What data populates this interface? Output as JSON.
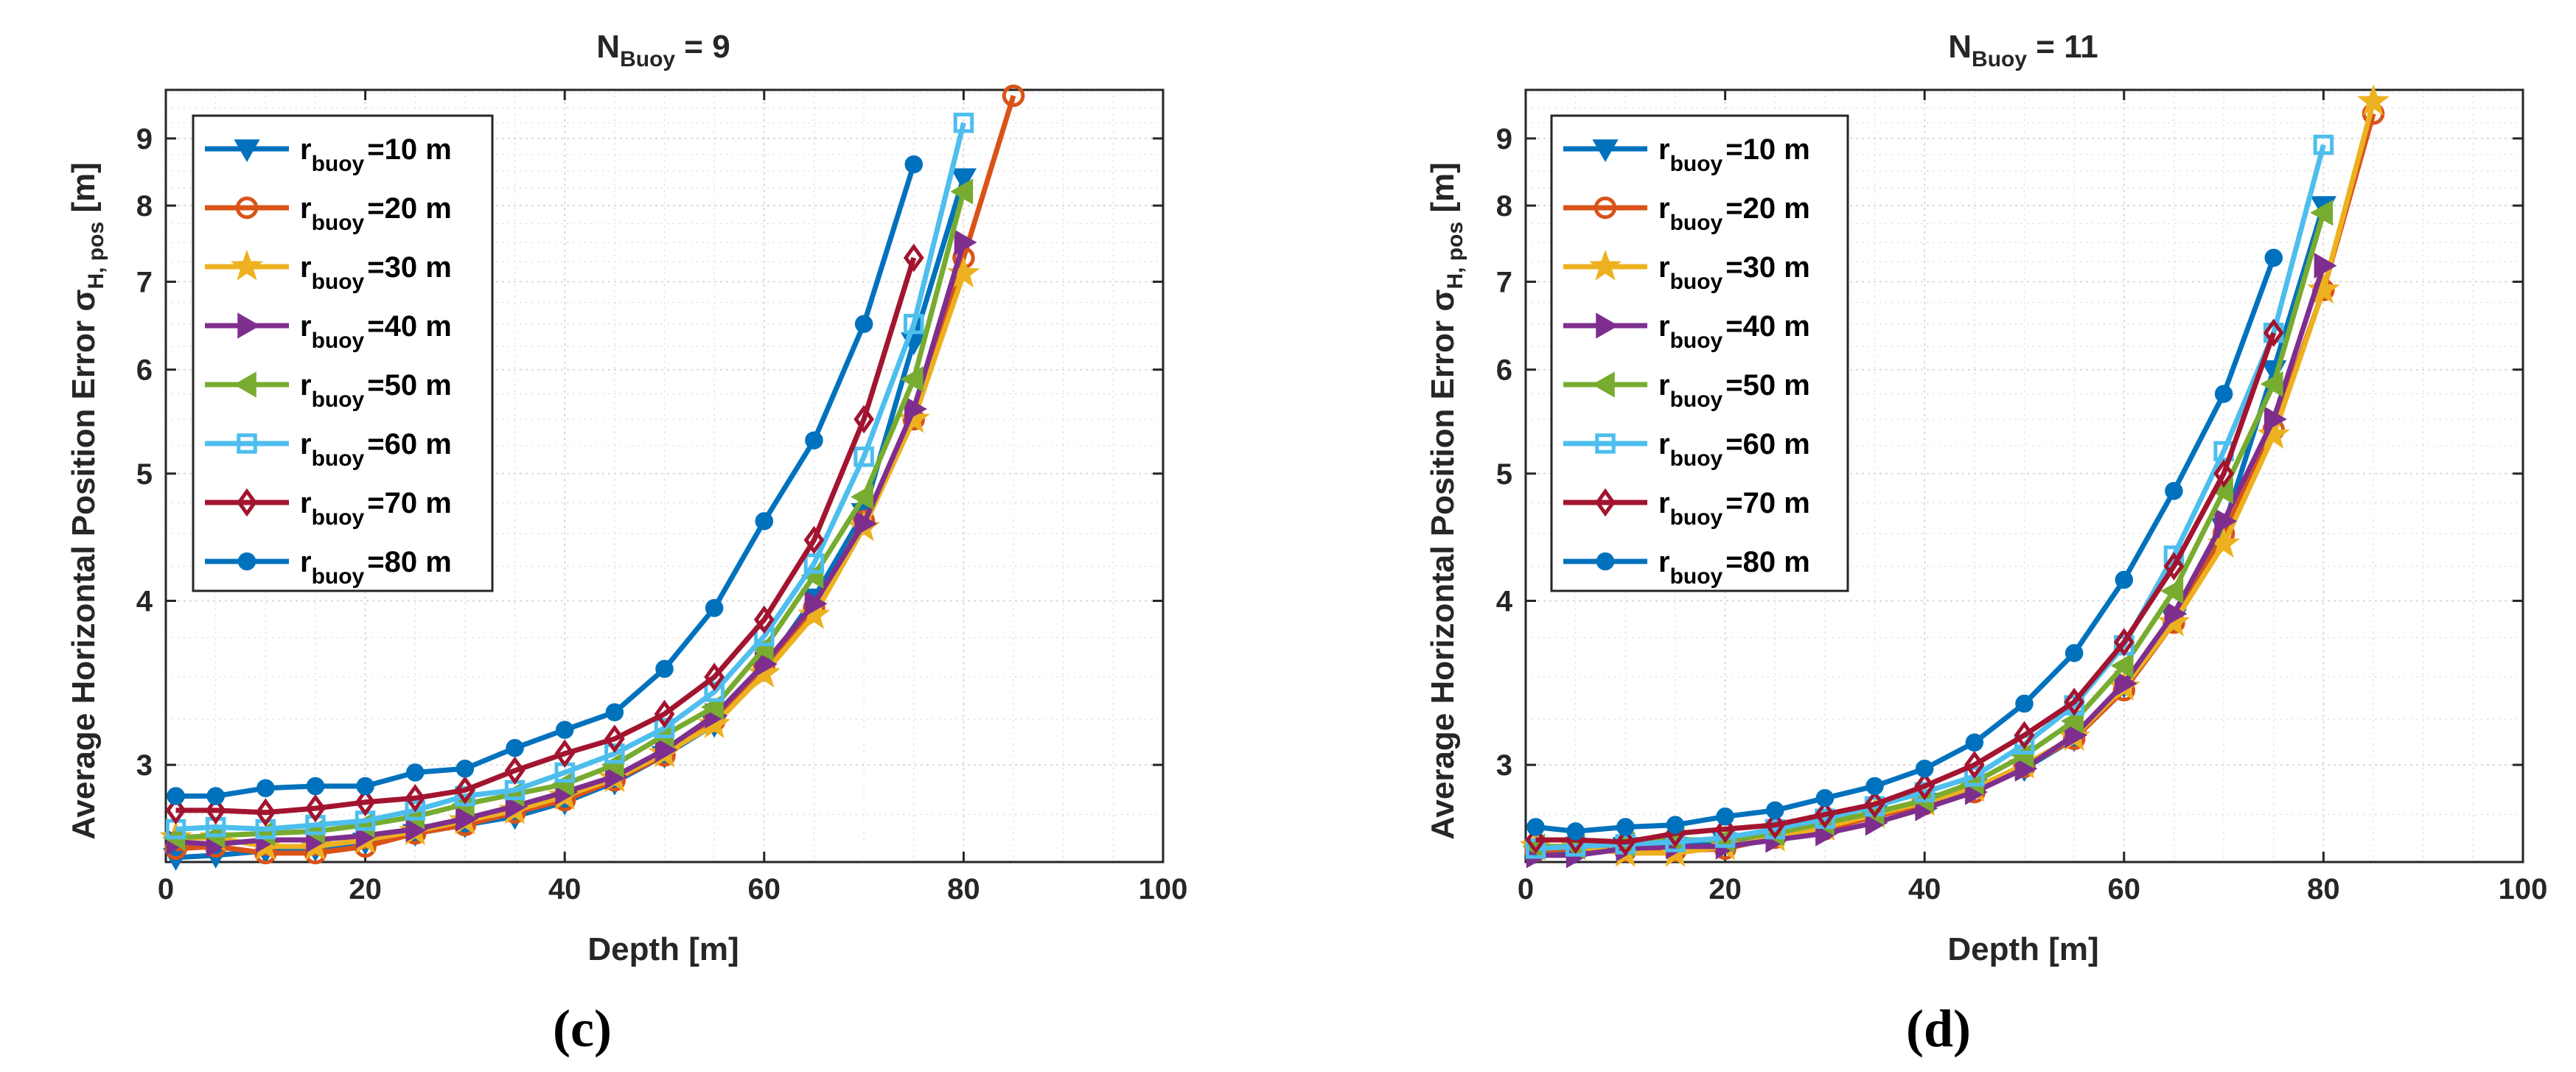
{
  "colors": {
    "r10": "#0072BD",
    "r20": "#D95319",
    "r30": "#EDB120",
    "r40": "#7E2F8E",
    "r50": "#77AC30",
    "r60": "#4DBEEE",
    "r70": "#A2142F",
    "r80": "#0072BD",
    "axis": "#262626",
    "grid": "#d9d9d9"
  },
  "chart_data": [
    {
      "type": "line",
      "panel_label": "(c)",
      "title": {
        "base": "N",
        "sub": "Buoy",
        "rest": " = 9"
      },
      "xlabel": "Depth [m]",
      "ylabel": {
        "main": "Average Horizontal Position Error σ",
        "sub": "H, pos",
        "unit": " [m]"
      },
      "xlim": [
        0,
        100
      ],
      "ylim": [
        2.53,
        9.8
      ],
      "yscale": "log",
      "xticks": [
        0,
        20,
        40,
        60,
        80,
        100
      ],
      "xtick_labels": [
        "0",
        "20",
        "40",
        "60",
        "80",
        "100"
      ],
      "yticks": [
        3,
        4,
        5,
        6,
        7,
        8,
        9
      ],
      "ytick_labels": [
        "3",
        "4",
        "5",
        "6",
        "7",
        "8",
        "9"
      ],
      "grid": true,
      "legend_position": "top-left",
      "series": [
        {
          "name": "=10 m",
          "legend_base": "r",
          "legend_sub": "buoy",
          "legend_value": "=10 m",
          "marker": "triangle-down",
          "color_key": "r10",
          "x": [
            1,
            5,
            10,
            15,
            20,
            25,
            30,
            35,
            40,
            45,
            50,
            55,
            60,
            65,
            70,
            75,
            80
          ],
          "y": [
            2.55,
            2.56,
            2.58,
            2.59,
            2.62,
            2.66,
            2.7,
            2.74,
            2.81,
            2.91,
            3.05,
            3.22,
            3.55,
            4.02,
            4.67,
            6.3,
            8.4
          ]
        },
        {
          "name": "=20 m",
          "legend_base": "r",
          "legend_sub": "buoy",
          "legend_value": "=20 m",
          "marker": "circle",
          "color_key": "r20",
          "x": [
            1,
            5,
            10,
            15,
            20,
            25,
            30,
            35,
            40,
            45,
            50,
            55,
            60,
            65,
            70,
            75,
            80,
            85
          ],
          "y": [
            2.59,
            2.6,
            2.57,
            2.57,
            2.6,
            2.66,
            2.7,
            2.76,
            2.82,
            2.92,
            3.05,
            3.24,
            3.57,
            3.95,
            4.6,
            5.5,
            7.3,
            9.7
          ]
        },
        {
          "name": "=30 m",
          "legend_base": "r",
          "legend_sub": "buoy",
          "legend_value": "=30 m",
          "marker": "star",
          "color_key": "r30",
          "x": [
            1,
            5,
            10,
            15,
            20,
            25,
            30,
            35,
            40,
            45,
            50,
            55,
            60,
            65,
            70,
            75,
            80
          ],
          "y": [
            2.64,
            2.64,
            2.6,
            2.6,
            2.63,
            2.67,
            2.72,
            2.77,
            2.84,
            2.93,
            3.06,
            3.22,
            3.52,
            3.9,
            4.55,
            5.5,
            7.1
          ]
        },
        {
          "name": "=40 m",
          "legend_base": "r",
          "legend_sub": "buoy",
          "legend_value": "=40 m",
          "marker": "triangle-right",
          "color_key": "r40",
          "x": [
            1,
            5,
            10,
            15,
            20,
            25,
            30,
            35,
            40,
            45,
            50,
            55,
            60,
            65,
            70,
            75,
            80
          ],
          "y": [
            2.62,
            2.61,
            2.63,
            2.63,
            2.65,
            2.68,
            2.73,
            2.79,
            2.86,
            2.94,
            3.08,
            3.27,
            3.58,
            3.98,
            4.58,
            5.6,
            7.5
          ]
        },
        {
          "name": "=50 m",
          "legend_base": "r",
          "legend_sub": "buoy",
          "legend_value": "=50 m",
          "marker": "triangle-left",
          "color_key": "r50",
          "x": [
            1,
            5,
            10,
            15,
            20,
            25,
            30,
            35,
            40,
            45,
            50,
            55,
            60,
            65,
            70,
            75,
            80
          ],
          "y": [
            2.64,
            2.65,
            2.66,
            2.67,
            2.7,
            2.74,
            2.8,
            2.85,
            2.9,
            3.0,
            3.16,
            3.32,
            3.68,
            4.18,
            4.8,
            5.9,
            8.2
          ]
        },
        {
          "name": "=60 m",
          "legend_base": "r",
          "legend_sub": "buoy",
          "legend_value": "=60 m",
          "marker": "square",
          "color_key": "r60",
          "x": [
            1,
            5,
            10,
            15,
            20,
            25,
            30,
            35,
            40,
            45,
            50,
            55,
            60,
            65,
            70,
            75,
            80
          ],
          "y": [
            2.68,
            2.69,
            2.68,
            2.7,
            2.72,
            2.77,
            2.84,
            2.87,
            2.96,
            3.06,
            3.2,
            3.41,
            3.76,
            4.27,
            5.15,
            6.5,
            9.25
          ]
        },
        {
          "name": "=70 m",
          "legend_base": "r",
          "legend_sub": "buoy",
          "legend_value": "=70 m",
          "marker": "diamond",
          "color_key": "r70",
          "x": [
            1,
            5,
            10,
            15,
            20,
            25,
            30,
            35,
            40,
            45,
            50,
            55,
            60,
            65,
            70,
            75
          ],
          "y": [
            2.77,
            2.77,
            2.76,
            2.78,
            2.81,
            2.83,
            2.87,
            2.97,
            3.06,
            3.14,
            3.28,
            3.5,
            3.87,
            4.45,
            5.5,
            7.3
          ]
        },
        {
          "name": "=80 m",
          "legend_base": "r",
          "legend_sub": "buoy",
          "legend_value": "=80 m",
          "marker": "dot",
          "color_key": "r80",
          "x": [
            1,
            5,
            10,
            15,
            20,
            25,
            30,
            35,
            40,
            45,
            50,
            55,
            60,
            65,
            70,
            75
          ],
          "y": [
            2.84,
            2.84,
            2.88,
            2.89,
            2.89,
            2.96,
            2.98,
            3.09,
            3.19,
            3.29,
            3.55,
            3.95,
            4.6,
            5.3,
            6.5,
            8.6
          ]
        }
      ]
    },
    {
      "type": "line",
      "panel_label": "(d)",
      "title": {
        "base": "N",
        "sub": "Buoy",
        "rest": " = 11"
      },
      "xlabel": "Depth [m]",
      "ylabel": {
        "main": "Average Horizontal Position Error σ",
        "sub": "H, pos",
        "unit": " [m]"
      },
      "xlim": [
        0,
        100
      ],
      "ylim": [
        2.53,
        9.8
      ],
      "yscale": "log",
      "xticks": [
        0,
        20,
        40,
        60,
        80,
        100
      ],
      "xtick_labels": [
        "0",
        "20",
        "40",
        "60",
        "80",
        "100"
      ],
      "yticks": [
        3,
        4,
        5,
        6,
        7,
        8,
        9
      ],
      "ytick_labels": [
        "3",
        "4",
        "5",
        "6",
        "7",
        "8",
        "9"
      ],
      "grid": true,
      "legend_position": "top-left",
      "series": [
        {
          "name": "=10 m",
          "legend_base": "r",
          "legend_sub": "buoy",
          "legend_value": "=10 m",
          "marker": "triangle-down",
          "color_key": "r10",
          "x": [
            1,
            5,
            10,
            15,
            20,
            25,
            30,
            35,
            40,
            45,
            50,
            55,
            60,
            65,
            70,
            75,
            80
          ],
          "y": [
            2.58,
            2.58,
            2.6,
            2.6,
            2.62,
            2.65,
            2.7,
            2.75,
            2.81,
            2.88,
            2.98,
            3.14,
            3.45,
            3.88,
            4.55,
            6.0,
            8.0
          ]
        },
        {
          "name": "=20 m",
          "legend_base": "r",
          "legend_sub": "buoy",
          "legend_value": "=20 m",
          "marker": "circle",
          "color_key": "r20",
          "x": [
            1,
            5,
            10,
            15,
            20,
            25,
            30,
            35,
            40,
            45,
            50,
            55,
            60,
            65,
            70,
            75,
            80,
            85
          ],
          "y": [
            2.58,
            2.59,
            2.58,
            2.58,
            2.59,
            2.64,
            2.68,
            2.74,
            2.8,
            2.86,
            2.99,
            3.14,
            3.42,
            3.85,
            4.5,
            5.4,
            6.9,
            9.4
          ]
        },
        {
          "name": "=30 m",
          "legend_base": "r",
          "legend_sub": "buoy",
          "legend_value": "=30 m",
          "marker": "star",
          "color_key": "r30",
          "x": [
            1,
            5,
            10,
            15,
            20,
            25,
            30,
            35,
            40,
            45,
            50,
            55,
            60,
            65,
            70,
            75,
            80,
            85
          ],
          "y": [
            2.6,
            2.6,
            2.57,
            2.57,
            2.6,
            2.64,
            2.69,
            2.75,
            2.81,
            2.88,
            3.0,
            3.15,
            3.44,
            3.85,
            4.42,
            5.35,
            6.9,
            9.6
          ]
        },
        {
          "name": "=40 m",
          "legend_base": "r",
          "legend_sub": "buoy",
          "legend_value": "=40 m",
          "marker": "triangle-right",
          "color_key": "r40",
          "x": [
            1,
            5,
            10,
            15,
            20,
            25,
            30,
            35,
            40,
            45,
            50,
            55,
            60,
            65,
            70,
            75,
            80
          ],
          "y": [
            2.56,
            2.56,
            2.59,
            2.6,
            2.6,
            2.63,
            2.66,
            2.71,
            2.78,
            2.86,
            2.98,
            3.16,
            3.46,
            3.91,
            4.6,
            5.5,
            7.2
          ]
        },
        {
          "name": "=50 m",
          "legend_base": "r",
          "legend_sub": "buoy",
          "legend_value": "=50 m",
          "marker": "triangle-left",
          "color_key": "r50",
          "x": [
            1,
            5,
            10,
            15,
            20,
            25,
            30,
            35,
            40,
            45,
            50,
            55,
            60,
            65,
            70,
            75,
            80
          ],
          "y": [
            2.6,
            2.6,
            2.61,
            2.63,
            2.63,
            2.66,
            2.71,
            2.76,
            2.82,
            2.91,
            3.05,
            3.24,
            3.57,
            4.07,
            4.85,
            5.85,
            7.9
          ]
        },
        {
          "name": "=60 m",
          "legend_base": "r",
          "legend_sub": "buoy",
          "legend_value": "=60 m",
          "marker": "square",
          "color_key": "r60",
          "x": [
            1,
            5,
            10,
            15,
            20,
            25,
            30,
            35,
            40,
            45,
            50,
            55,
            60,
            65,
            70,
            75,
            80
          ],
          "y": [
            2.59,
            2.6,
            2.61,
            2.62,
            2.64,
            2.68,
            2.73,
            2.79,
            2.86,
            2.94,
            3.11,
            3.33,
            3.7,
            4.33,
            5.2,
            6.4,
            8.9
          ]
        },
        {
          "name": "=70 m",
          "legend_base": "r",
          "legend_sub": "buoy",
          "legend_value": "=70 m",
          "marker": "diamond",
          "color_key": "r70",
          "x": [
            1,
            5,
            10,
            15,
            20,
            25,
            30,
            35,
            40,
            45,
            50,
            55,
            60,
            65,
            70,
            75
          ],
          "y": [
            2.63,
            2.63,
            2.62,
            2.66,
            2.68,
            2.7,
            2.75,
            2.8,
            2.89,
            3.0,
            3.16,
            3.35,
            3.72,
            4.25,
            5.0,
            6.4
          ]
        },
        {
          "name": "=80 m",
          "legend_base": "r",
          "legend_sub": "buoy",
          "legend_value": "=80 m",
          "marker": "dot",
          "color_key": "r80",
          "x": [
            1,
            5,
            10,
            15,
            20,
            25,
            30,
            35,
            40,
            45,
            50,
            55,
            60,
            65,
            70,
            75
          ],
          "y": [
            2.69,
            2.67,
            2.69,
            2.7,
            2.74,
            2.77,
            2.83,
            2.89,
            2.98,
            3.12,
            3.34,
            3.65,
            4.15,
            4.85,
            5.75,
            7.3
          ]
        }
      ]
    }
  ]
}
